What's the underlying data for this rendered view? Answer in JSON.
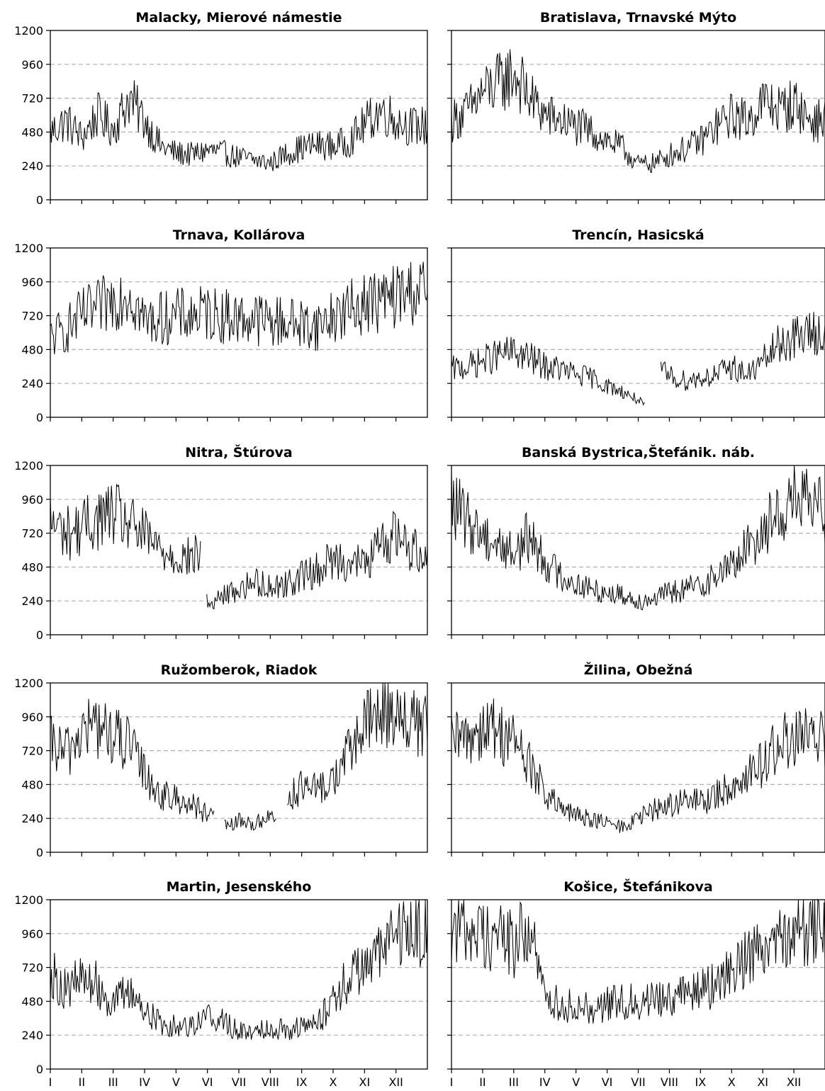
{
  "chart_data": [
    {
      "type": "line",
      "title": "Malacky, Mierové námestie",
      "ylim": [
        0,
        1200
      ],
      "yticks": [
        0,
        240,
        480,
        720,
        960,
        1200
      ],
      "grid": "horizontal dashed",
      "x_month_ticks": [
        "I",
        "II",
        "III",
        "IV",
        "V",
        "VI",
        "VII",
        "VIII",
        "IX",
        "X",
        "XI",
        "XII"
      ],
      "series": [
        {
          "months": [
            1,
            1.5,
            2,
            2.5,
            3,
            3.5,
            4,
            4.5,
            5,
            5.5,
            6,
            6.5,
            7,
            7.5,
            8,
            8.5,
            9,
            9.5,
            10,
            10.5,
            11,
            11.5,
            12,
            12.5
          ],
          "values": [
            480,
            560,
            440,
            600,
            500,
            720,
            560,
            380,
            330,
            320,
            350,
            330,
            300,
            280,
            260,
            330,
            370,
            390,
            380,
            420,
            540,
            640,
            560,
            520
          ],
          "gaps": []
        }
      ]
    },
    {
      "type": "line",
      "title": "Bratislava, Trnavské Mýto",
      "ylim": [
        0,
        1200
      ],
      "yticks": [
        0,
        240,
        480,
        720,
        960,
        1200
      ],
      "grid": "horizontal dashed",
      "x_month_ticks": [
        "I",
        "II",
        "III",
        "IV",
        "V",
        "VI",
        "VII",
        "VIII",
        "IX",
        "X",
        "XI",
        "XII"
      ],
      "series": [
        {
          "months": [
            1,
            1.5,
            2,
            2.5,
            3,
            3.5,
            4,
            4.5,
            5,
            5.5,
            6,
            6.5,
            7,
            7.5,
            8,
            8.5,
            9,
            9.5,
            10,
            10.5,
            11,
            11.5,
            12,
            12.5
          ],
          "values": [
            560,
            620,
            760,
            820,
            900,
            720,
            600,
            560,
            520,
            480,
            420,
            360,
            250,
            260,
            320,
            360,
            420,
            520,
            600,
            560,
            700,
            640,
            680,
            560
          ],
          "gaps": []
        }
      ]
    },
    {
      "type": "line",
      "title": "Trnava, Kollárova",
      "ylim": [
        0,
        1200
      ],
      "yticks": [
        0,
        240,
        480,
        720,
        960,
        1200
      ],
      "grid": "horizontal dashed",
      "x_month_ticks": [
        "I",
        "II",
        "III",
        "IV",
        "V",
        "VI",
        "VII",
        "VIII",
        "IX",
        "X",
        "XI",
        "XII"
      ],
      "series": [
        {
          "months": [
            1,
            1.5,
            2,
            2.5,
            3,
            3.5,
            4,
            4.5,
            5,
            5.5,
            6,
            6.5,
            7,
            7.5,
            8,
            8.5,
            9,
            9.5,
            10,
            10.5,
            11,
            11.5,
            12,
            12.5
          ],
          "values": [
            560,
            620,
            720,
            760,
            840,
            900,
            680,
            700,
            720,
            720,
            740,
            720,
            700,
            700,
            680,
            680,
            660,
            650,
            720,
            760,
            820,
            820,
            860,
            900
          ],
          "gaps": []
        }
      ]
    },
    {
      "type": "line",
      "title": "Trencín, Hasicská",
      "ylim": [
        0,
        1200
      ],
      "yticks": [
        0,
        240,
        480,
        720,
        960,
        1200
      ],
      "grid": "horizontal dashed",
      "x_month_ticks": [
        "I",
        "II",
        "III",
        "IV",
        "V",
        "VI",
        "VII",
        "VIII",
        "IX",
        "X",
        "XI",
        "XII"
      ],
      "series": [
        {
          "months": [
            1,
            1.5,
            2,
            2.5,
            3,
            3.5,
            4,
            4.5,
            5,
            5.5,
            6,
            6.5,
            7,
            7.2,
            7.7,
            8,
            8.5,
            9,
            9.5,
            10,
            10.5,
            11,
            11.5,
            12,
            12.5
          ],
          "values": [
            340,
            360,
            400,
            440,
            460,
            420,
            360,
            340,
            300,
            280,
            220,
            180,
            120,
            80,
            330,
            290,
            260,
            280,
            300,
            360,
            300,
            400,
            520,
            560,
            600
          ],
          "gaps": [
            [
              7.2,
              7.7
            ]
          ]
        }
      ]
    },
    {
      "type": "line",
      "title": "Nitra, Štúrova",
      "ylim": [
        0,
        1200
      ],
      "yticks": [
        0,
        240,
        480,
        720,
        960,
        1200
      ],
      "grid": "horizontal dashed",
      "x_month_ticks": [
        "I",
        "II",
        "III",
        "IV",
        "V",
        "VI",
        "VII",
        "VIII",
        "IX",
        "X",
        "XI",
        "XII"
      ],
      "series": [
        {
          "months": [
            1,
            1.5,
            2,
            2.5,
            3,
            3.5,
            4,
            4.5,
            5,
            5.5,
            5.8,
            6,
            6.5,
            7,
            7.5,
            8,
            8.5,
            9,
            9.5,
            10,
            10.5,
            11,
            11.5,
            12,
            12.5
          ],
          "values": [
            800,
            720,
            760,
            820,
            860,
            780,
            700,
            600,
            560,
            540,
            600,
            200,
            280,
            320,
            380,
            340,
            360,
            420,
            460,
            540,
            520,
            500,
            640,
            720,
            600
          ],
          "gaps": [
            [
              5.8,
              5.95
            ]
          ]
        }
      ]
    },
    {
      "type": "line",
      "title": "Banská Bystrica,Štefánik. náb.",
      "ylim": [
        0,
        1200
      ],
      "yticks": [
        0,
        240,
        480,
        720,
        960,
        1200
      ],
      "grid": "horizontal dashed",
      "x_month_ticks": [
        "I",
        "II",
        "III",
        "IV",
        "V",
        "VI",
        "VII",
        "VIII",
        "IX",
        "X",
        "XI",
        "XII"
      ],
      "series": [
        {
          "months": [
            1,
            1.5,
            2,
            2.5,
            3,
            3.5,
            4,
            4.5,
            5,
            5.5,
            6,
            6.5,
            7,
            7.5,
            8,
            8.5,
            9,
            9.5,
            10,
            10.5,
            11,
            11.5,
            12,
            12.5
          ],
          "values": [
            940,
            800,
            720,
            640,
            580,
            700,
            520,
            420,
            360,
            320,
            300,
            280,
            240,
            260,
            300,
            320,
            360,
            420,
            500,
            620,
            760,
            860,
            980,
            900
          ],
          "gaps": []
        }
      ]
    },
    {
      "type": "line",
      "title": "Ružomberok, Riadok",
      "ylim": [
        0,
        1200
      ],
      "yticks": [
        0,
        240,
        480,
        720,
        960,
        1200
      ],
      "grid": "horizontal dashed",
      "x_month_ticks": [
        "I",
        "II",
        "III",
        "IV",
        "V",
        "VI",
        "VII",
        "VIII",
        "IX",
        "X",
        "XI",
        "XII"
      ],
      "series": [
        {
          "months": [
            1,
            1.5,
            2,
            2.5,
            3,
            3.5,
            4,
            4.5,
            5,
            5.5,
            6,
            6.2,
            6.6,
            7,
            7.5,
            8,
            8.2,
            8.6,
            9,
            9.5,
            10,
            10.5,
            11,
            11.5,
            12,
            12.5
          ],
          "values": [
            760,
            700,
            860,
            900,
            820,
            760,
            560,
            400,
            380,
            340,
            260,
            240,
            180,
            220,
            200,
            260,
            240,
            400,
            460,
            440,
            520,
            720,
            900,
            1000,
            1000,
            900
          ],
          "gaps": [
            [
              6.2,
              6.5
            ],
            [
              8.2,
              8.5
            ]
          ]
        }
      ]
    },
    {
      "type": "line",
      "title": "Žilina, Obežná",
      "ylim": [
        0,
        1200
      ],
      "yticks": [
        0,
        240,
        480,
        720,
        960,
        1200
      ],
      "grid": "horizontal dashed",
      "x_month_ticks": [
        "I",
        "II",
        "III",
        "IV",
        "V",
        "VI",
        "VII",
        "VIII",
        "IX",
        "X",
        "XI",
        "XII"
      ],
      "series": [
        {
          "months": [
            1,
            1.5,
            2,
            2.5,
            3,
            3.5,
            4,
            4.5,
            5,
            5.5,
            6,
            6.5,
            7,
            7.5,
            8,
            8.5,
            9,
            9.5,
            10,
            10.5,
            11,
            11.5,
            12,
            12.5
          ],
          "values": [
            760,
            820,
            900,
            860,
            800,
            620,
            420,
            300,
            260,
            240,
            200,
            180,
            240,
            300,
            340,
            360,
            360,
            400,
            480,
            560,
            640,
            760,
            820,
            800
          ],
          "gaps": []
        }
      ]
    },
    {
      "type": "line",
      "title": "Martin, Jesenského",
      "ylim": [
        0,
        1200
      ],
      "yticks": [
        0,
        240,
        480,
        720,
        960,
        1200
      ],
      "grid": "horizontal dashed",
      "x_month_ticks": [
        "I",
        "II",
        "III",
        "IV",
        "V",
        "VI",
        "VII",
        "VIII",
        "IX",
        "X",
        "XI",
        "XII"
      ],
      "series": [
        {
          "months": [
            1,
            1.5,
            2,
            2.5,
            3,
            3.5,
            4,
            4.5,
            5,
            5.5,
            6,
            6.5,
            7,
            7.5,
            8,
            8.5,
            9,
            9.5,
            10,
            10.5,
            11,
            11.5,
            12,
            12.5
          ],
          "values": [
            680,
            560,
            640,
            600,
            460,
            560,
            420,
            320,
            300,
            320,
            380,
            340,
            260,
            280,
            300,
            280,
            300,
            320,
            520,
            640,
            760,
            820,
            960,
            1000
          ],
          "gaps": []
        }
      ]
    },
    {
      "type": "line",
      "title": "Košice, Štefánikova",
      "ylim": [
        0,
        1200
      ],
      "yticks": [
        0,
        240,
        480,
        720,
        960,
        1200
      ],
      "grid": "horizontal dashed",
      "x_month_ticks": [
        "I",
        "II",
        "III",
        "IV",
        "V",
        "VI",
        "VII",
        "VIII",
        "IX",
        "X",
        "XI",
        "XII"
      ],
      "series": [
        {
          "months": [
            1,
            1.5,
            2,
            2.5,
            3,
            3.5,
            4,
            4.5,
            5,
            5.5,
            6,
            6.5,
            7,
            7.5,
            8,
            8.5,
            9,
            9.5,
            10,
            10.5,
            11,
            11.5,
            12,
            12.5
          ],
          "values": [
            1020,
            1000,
            960,
            960,
            880,
            1000,
            500,
            460,
            440,
            440,
            460,
            480,
            480,
            500,
            520,
            540,
            560,
            600,
            720,
            800,
            900,
            980,
            1020,
            1000
          ],
          "gaps": []
        }
      ]
    }
  ]
}
